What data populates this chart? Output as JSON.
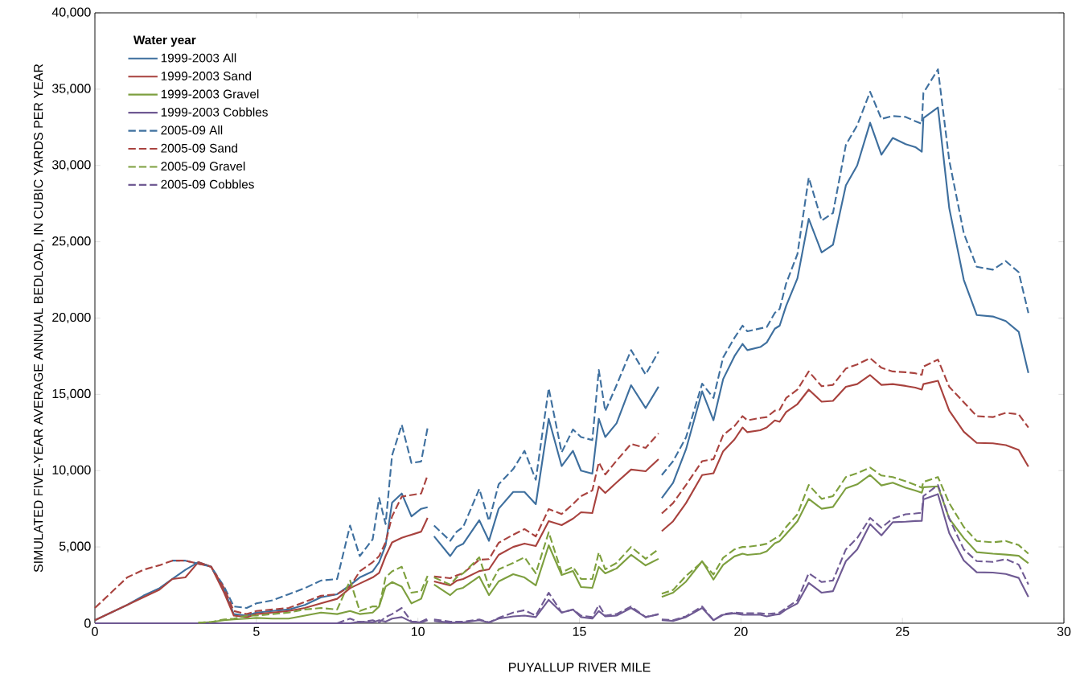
{
  "chart_data": {
    "type": "line",
    "xlabel": "PUYALLUP RIVER MILE",
    "ylabel": "SIMULATED FIVE-YEAR AVERAGE ANNUAL BEDLOAD, IN CUBIC YARDS PER YEAR",
    "legend_title": "Water year",
    "legend": "top left",
    "grid": false,
    "marker": "none",
    "xlim": [
      0,
      30
    ],
    "xticks": [
      {
        "value": 0,
        "label": "0"
      },
      5,
      10,
      15,
      20,
      25,
      30
    ],
    "ylim": [
      0,
      40000
    ],
    "yticks": [
      {
        "value": 0,
        "label": "0"
      },
      {
        "value": 5000,
        "label": "5,000"
      },
      {
        "value": 10000,
        "label": "10,000"
      },
      {
        "value": 15000,
        "label": "15,000"
      },
      {
        "value": 20000,
        "label": "20,000"
      },
      {
        "value": 25000,
        "label": "25,000"
      },
      {
        "value": 30000,
        "label": "30,000"
      },
      {
        "value": 35000,
        "label": "35,000"
      },
      {
        "value": 40000,
        "label": "40,000"
      }
    ],
    "x": [
      0,
      0.5,
      1,
      1.5,
      2,
      2.4,
      2.8,
      3.2,
      3.6,
      4,
      4.3,
      4.7,
      5,
      5.5,
      6,
      6.5,
      7,
      7.5,
      7.9,
      8.2,
      8.6,
      8.8,
      9.0,
      9.2,
      9.5,
      9.8,
      10.1,
      10.3,
      10.4,
      10.5,
      11.0,
      11.2,
      11.4,
      11.9,
      12.2,
      12.5,
      12.95,
      13.3,
      13.65,
      14.05,
      14.45,
      14.8,
      15.05,
      15.4,
      15.6,
      15.8,
      16.15,
      16.6,
      17.05,
      17.45,
      17.5,
      17.55,
      17.9,
      18.3,
      18.8,
      19.15,
      19.45,
      19.8,
      20.05,
      20.2,
      20.6,
      20.8,
      21.05,
      21.2,
      21.4,
      21.75,
      22.1,
      22.5,
      22.85,
      23.25,
      23.6,
      24.0,
      24.35,
      24.7,
      25.1,
      25.4,
      25.6,
      25.65,
      26.1,
      26.45,
      26.9,
      27.3,
      27.8,
      28.2,
      28.6,
      28.9
    ],
    "series": [
      {
        "name": "1999-2003 All",
        "color": "#3e6f9e",
        "line_style": "solid",
        "values": [
          200,
          700,
          1200,
          1800,
          2300,
          2900,
          3500,
          4000,
          3700,
          2200,
          600,
          500,
          700,
          800,
          900,
          1200,
          1700,
          1900,
          2500,
          3000,
          3400,
          4000,
          5100,
          7900,
          8500,
          7000,
          7500,
          7600,
          null,
          5700,
          4400,
          5000,
          5200,
          6750,
          5400,
          7500,
          8600,
          8600,
          7800,
          13400,
          10300,
          11300,
          10000,
          9800,
          13400,
          12200,
          13100,
          15600,
          14100,
          15500,
          null,
          8200,
          9200,
          11400,
          15200,
          13300,
          16000,
          17500,
          18300,
          17900,
          18100,
          18400,
          19300,
          19500,
          20800,
          22600,
          26500,
          24300,
          24800,
          28700,
          30000,
          32800,
          30700,
          31800,
          31400,
          31200,
          30900,
          33100,
          33800,
          27200,
          22500,
          20200,
          20100,
          19800,
          19100,
          16400
        ]
      },
      {
        "name": "1999-2003 Sand",
        "color": "#a8423e",
        "line_style": "solid",
        "values": [
          200,
          700,
          1200,
          1700,
          2200,
          2900,
          3000,
          4000,
          3700,
          2000,
          500,
          400,
          600,
          700,
          800,
          1000,
          1300,
          1600,
          2300,
          2600,
          3000,
          3300,
          4400,
          5300,
          5600,
          5800,
          6000,
          6900,
          null,
          2740,
          2480,
          2790,
          2900,
          3420,
          3530,
          4480,
          5000,
          5220,
          5060,
          6690,
          6430,
          6850,
          7270,
          7220,
          8960,
          8540,
          9220,
          10070,
          9960,
          10750,
          null,
          6030,
          6680,
          7870,
          9710,
          9830,
          11270,
          12040,
          12830,
          12520,
          12650,
          12830,
          13290,
          13200,
          13840,
          14360,
          15310,
          14520,
          14570,
          15490,
          15670,
          16260,
          15620,
          15670,
          15550,
          15440,
          15310,
          15670,
          15890,
          13930,
          12550,
          11820,
          11790,
          11670,
          11360,
          10260
        ]
      },
      {
        "name": "1999-2003 Gravel",
        "color": "#7d9f3f",
        "line_style": "solid",
        "values": [
          null,
          null,
          null,
          null,
          null,
          null,
          null,
          30,
          80,
          200,
          250,
          300,
          350,
          300,
          300,
          500,
          700,
          600,
          800,
          600,
          700,
          1100,
          2400,
          2700,
          2400,
          1300,
          1600,
          2800,
          null,
          2530,
          1840,
          2210,
          2320,
          3060,
          1840,
          2740,
          3210,
          3000,
          2480,
          5110,
          3160,
          3430,
          2370,
          2320,
          3690,
          3270,
          3590,
          4480,
          3790,
          4220,
          null,
          1720,
          2000,
          2730,
          4070,
          2860,
          3830,
          4380,
          4560,
          4480,
          4560,
          4710,
          5240,
          5380,
          5850,
          6680,
          8150,
          7500,
          7620,
          8840,
          9100,
          9710,
          9030,
          9210,
          8880,
          8700,
          8550,
          8910,
          8970,
          6860,
          5580,
          4660,
          4560,
          4500,
          4420,
          3930
        ]
      },
      {
        "name": "1999-2003 Cobbles",
        "color": "#6f5a93",
        "line_style": "solid",
        "values": [
          0,
          0,
          0,
          0,
          0,
          0,
          0,
          0,
          0,
          0,
          0,
          0,
          0,
          0,
          0,
          0,
          0,
          0,
          0,
          100,
          50,
          200,
          100,
          300,
          400,
          100,
          50,
          200,
          null,
          150,
          30,
          50,
          50,
          200,
          50,
          300,
          450,
          500,
          400,
          1530,
          700,
          900,
          400,
          300,
          800,
          450,
          500,
          1000,
          400,
          580,
          null,
          200,
          150,
          400,
          1000,
          200,
          550,
          650,
          550,
          550,
          550,
          450,
          550,
          600,
          900,
          1300,
          2640,
          2000,
          2100,
          4070,
          4840,
          6490,
          5760,
          6620,
          6650,
          6700,
          6710,
          8110,
          8460,
          5900,
          4110,
          3340,
          3320,
          3230,
          2970,
          1720
        ]
      },
      {
        "name": "2005-09 All",
        "color": "#3f709f",
        "line_style": "dashed",
        "values": [
          null,
          null,
          null,
          null,
          null,
          4100,
          4100,
          3900,
          3700,
          2400,
          1100,
          1000,
          1300,
          1500,
          1900,
          2300,
          2800,
          2900,
          6400,
          4400,
          5500,
          8200,
          6500,
          11000,
          13000,
          10500,
          10600,
          12800,
          null,
          6400,
          5400,
          6000,
          6300,
          8800,
          6700,
          9100,
          10100,
          11300,
          9400,
          15400,
          11200,
          12700,
          12200,
          12000,
          16600,
          13900,
          15600,
          17900,
          16300,
          17800,
          null,
          9710,
          10620,
          12180,
          15700,
          14760,
          17420,
          18700,
          19500,
          19130,
          19320,
          19410,
          20340,
          20600,
          22260,
          24190,
          29200,
          26390,
          26880,
          31350,
          32630,
          34830,
          33050,
          33240,
          33180,
          32900,
          32730,
          34750,
          36300,
          30330,
          25560,
          23360,
          23170,
          23730,
          23000,
          20330
        ]
      },
      {
        "name": "2005-09 Sand",
        "color": "#a9433f",
        "line_style": "dashed",
        "values": [
          1000,
          2000,
          3000,
          3500,
          3800,
          4100,
          4100,
          3900,
          3700,
          2300,
          800,
          600,
          800,
          900,
          1000,
          1400,
          1800,
          1900,
          2400,
          3400,
          4000,
          4400,
          5300,
          7000,
          8300,
          8400,
          8500,
          9700,
          null,
          3060,
          2950,
          3130,
          3270,
          4160,
          4200,
          5270,
          5800,
          6170,
          5690,
          7480,
          7160,
          7800,
          8330,
          8700,
          10540,
          9750,
          10650,
          11750,
          11490,
          12440,
          null,
          7190,
          7870,
          9060,
          10620,
          10750,
          12330,
          12920,
          13570,
          13300,
          13450,
          13510,
          13930,
          13990,
          14760,
          15310,
          16500,
          15530,
          15620,
          16690,
          16960,
          17370,
          16740,
          16500,
          16450,
          16380,
          16280,
          16820,
          17280,
          15490,
          14480,
          13570,
          13510,
          13790,
          13690,
          12830
        ]
      },
      {
        "name": "2005-09 Gravel",
        "color": "#7ea03e",
        "line_style": "dashed",
        "values": [
          null,
          null,
          null,
          null,
          null,
          null,
          null,
          30,
          80,
          250,
          300,
          500,
          500,
          600,
          700,
          900,
          1000,
          900,
          2800,
          800,
          1100,
          1100,
          3000,
          3400,
          3700,
          2000,
          2100,
          3100,
          null,
          3000,
          2530,
          3000,
          3270,
          4320,
          2370,
          3530,
          3950,
          4320,
          3270,
          5960,
          3320,
          3690,
          2900,
          2900,
          4640,
          3530,
          3950,
          5000,
          4220,
          4850,
          null,
          1930,
          2180,
          3100,
          4020,
          3190,
          4290,
          4840,
          5000,
          5000,
          5120,
          5210,
          5550,
          5730,
          6310,
          7140,
          9060,
          8150,
          8330,
          9580,
          9830,
          10200,
          9680,
          9580,
          9300,
          9060,
          8880,
          9260,
          9580,
          7870,
          6310,
          5390,
          5300,
          5390,
          5120,
          4560
        ]
      },
      {
        "name": "2005-09 Cobbles",
        "color": "#705b94",
        "line_style": "dashed",
        "values": [
          null,
          null,
          null,
          null,
          null,
          null,
          null,
          null,
          null,
          null,
          null,
          null,
          null,
          null,
          null,
          null,
          null,
          0,
          300,
          50,
          200,
          50,
          400,
          600,
          1000,
          100,
          100,
          300,
          null,
          250,
          100,
          100,
          100,
          250,
          50,
          350,
          700,
          850,
          500,
          2000,
          700,
          900,
          500,
          400,
          1200,
          500,
          600,
          1100,
          400,
          600,
          null,
          250,
          200,
          450,
          1100,
          200,
          600,
          700,
          650,
          650,
          650,
          600,
          650,
          700,
          1000,
          1500,
          3280,
          2700,
          2800,
          4840,
          5580,
          6900,
          6260,
          6860,
          7140,
          7190,
          7240,
          8330,
          9060,
          6860,
          4840,
          4070,
          4020,
          4200,
          3840,
          2540
        ]
      }
    ]
  }
}
